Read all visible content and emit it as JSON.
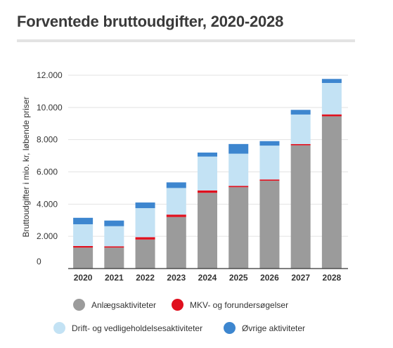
{
  "title": "Forventede bruttoudgifter, 2020-2028",
  "chart_data": {
    "type": "bar",
    "stacked": true,
    "categories": [
      "2020",
      "2021",
      "2022",
      "2023",
      "2024",
      "2025",
      "2026",
      "2027",
      "2028"
    ],
    "ylabel": "Bruttoudgifter i mio. kr, løbende priser",
    "xlabel": "",
    "ylim": [
      0,
      12000
    ],
    "yticks": [
      "0",
      "2.000",
      "4.000",
      "6.000",
      "8.000",
      "10.000",
      "12.000"
    ],
    "ytick_values": [
      0,
      2000,
      4000,
      6000,
      8000,
      10000,
      12000
    ],
    "grid": true,
    "legend_position": "bottom",
    "series": [
      {
        "name": "Anlægsaktiviteter",
        "color": "#9b9b9b",
        "values": [
          1300,
          1300,
          1800,
          3200,
          4700,
          5050,
          5450,
          7650,
          9450
        ]
      },
      {
        "name": "MKV- og forundersøgelser",
        "color": "#e0101e",
        "values": [
          100,
          80,
          150,
          150,
          150,
          80,
          80,
          80,
          120
        ]
      },
      {
        "name": "Drift- og vedligeholdelsesaktiviteter",
        "color": "#c3e2f4",
        "values": [
          1350,
          1250,
          1800,
          1650,
          2100,
          2000,
          2100,
          1830,
          1950
        ]
      },
      {
        "name": "Øvrige aktiviteter",
        "color": "#3d86cf",
        "values": [
          400,
          350,
          350,
          350,
          250,
          600,
          280,
          290,
          250
        ]
      }
    ],
    "legend_order": [
      0,
      1,
      2,
      3
    ]
  }
}
